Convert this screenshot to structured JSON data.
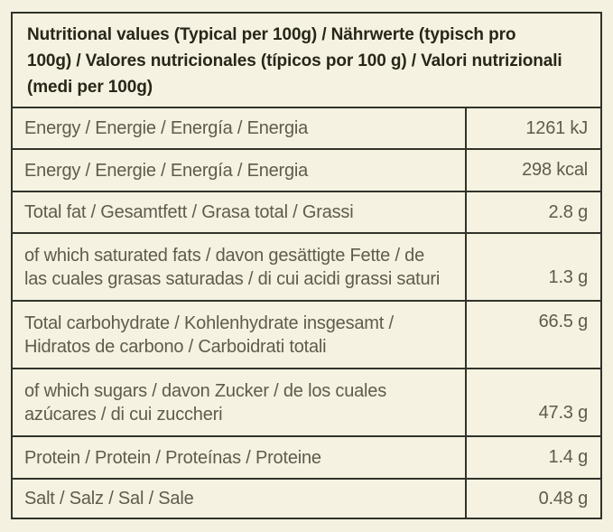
{
  "colors": {
    "background": "#f4f1e0",
    "cell_background": "#f5f2e1",
    "border": "#31332a",
    "header_text": "#272719",
    "body_text": "#5f5b4d"
  },
  "table": {
    "title": "Nutritional values (Typical per 100g) / Nährwerte (typisch pro\n100g) / Valores nutricionales (típicos por 100 g) / Valori nutrizionali\n(medi per 100g)",
    "rows": [
      {
        "label": "Energy / Energie / Energía / Energia",
        "value": "1261 kJ"
      },
      {
        "label": "Energy / Energie / Energía / Energia",
        "value": "298 kcal"
      },
      {
        "label": "Total fat / Gesamtfett / Grasa total / Grassi",
        "value": "2.8 g"
      },
      {
        "label": "of which saturated fats / davon gesättigte Fette / de\nlas cuales grasas saturadas / di cui acidi grassi saturi",
        "value": "1.3 g"
      },
      {
        "label": "Total carbohydrate / Kohlenhydrate insgesamt /\nHidratos de carbono / Carboidrati totali",
        "value": "66.5 g"
      },
      {
        "label": "of which sugars / davon Zucker / de los cuales\nazúcares / di cui zuccheri",
        "value": "47.3 g"
      },
      {
        "label": "Protein / Protein / Proteínas / Proteine",
        "value": "1.4 g"
      },
      {
        "label": "Salt / Salz / Sal / Sale",
        "value": "0.48 g"
      }
    ]
  }
}
